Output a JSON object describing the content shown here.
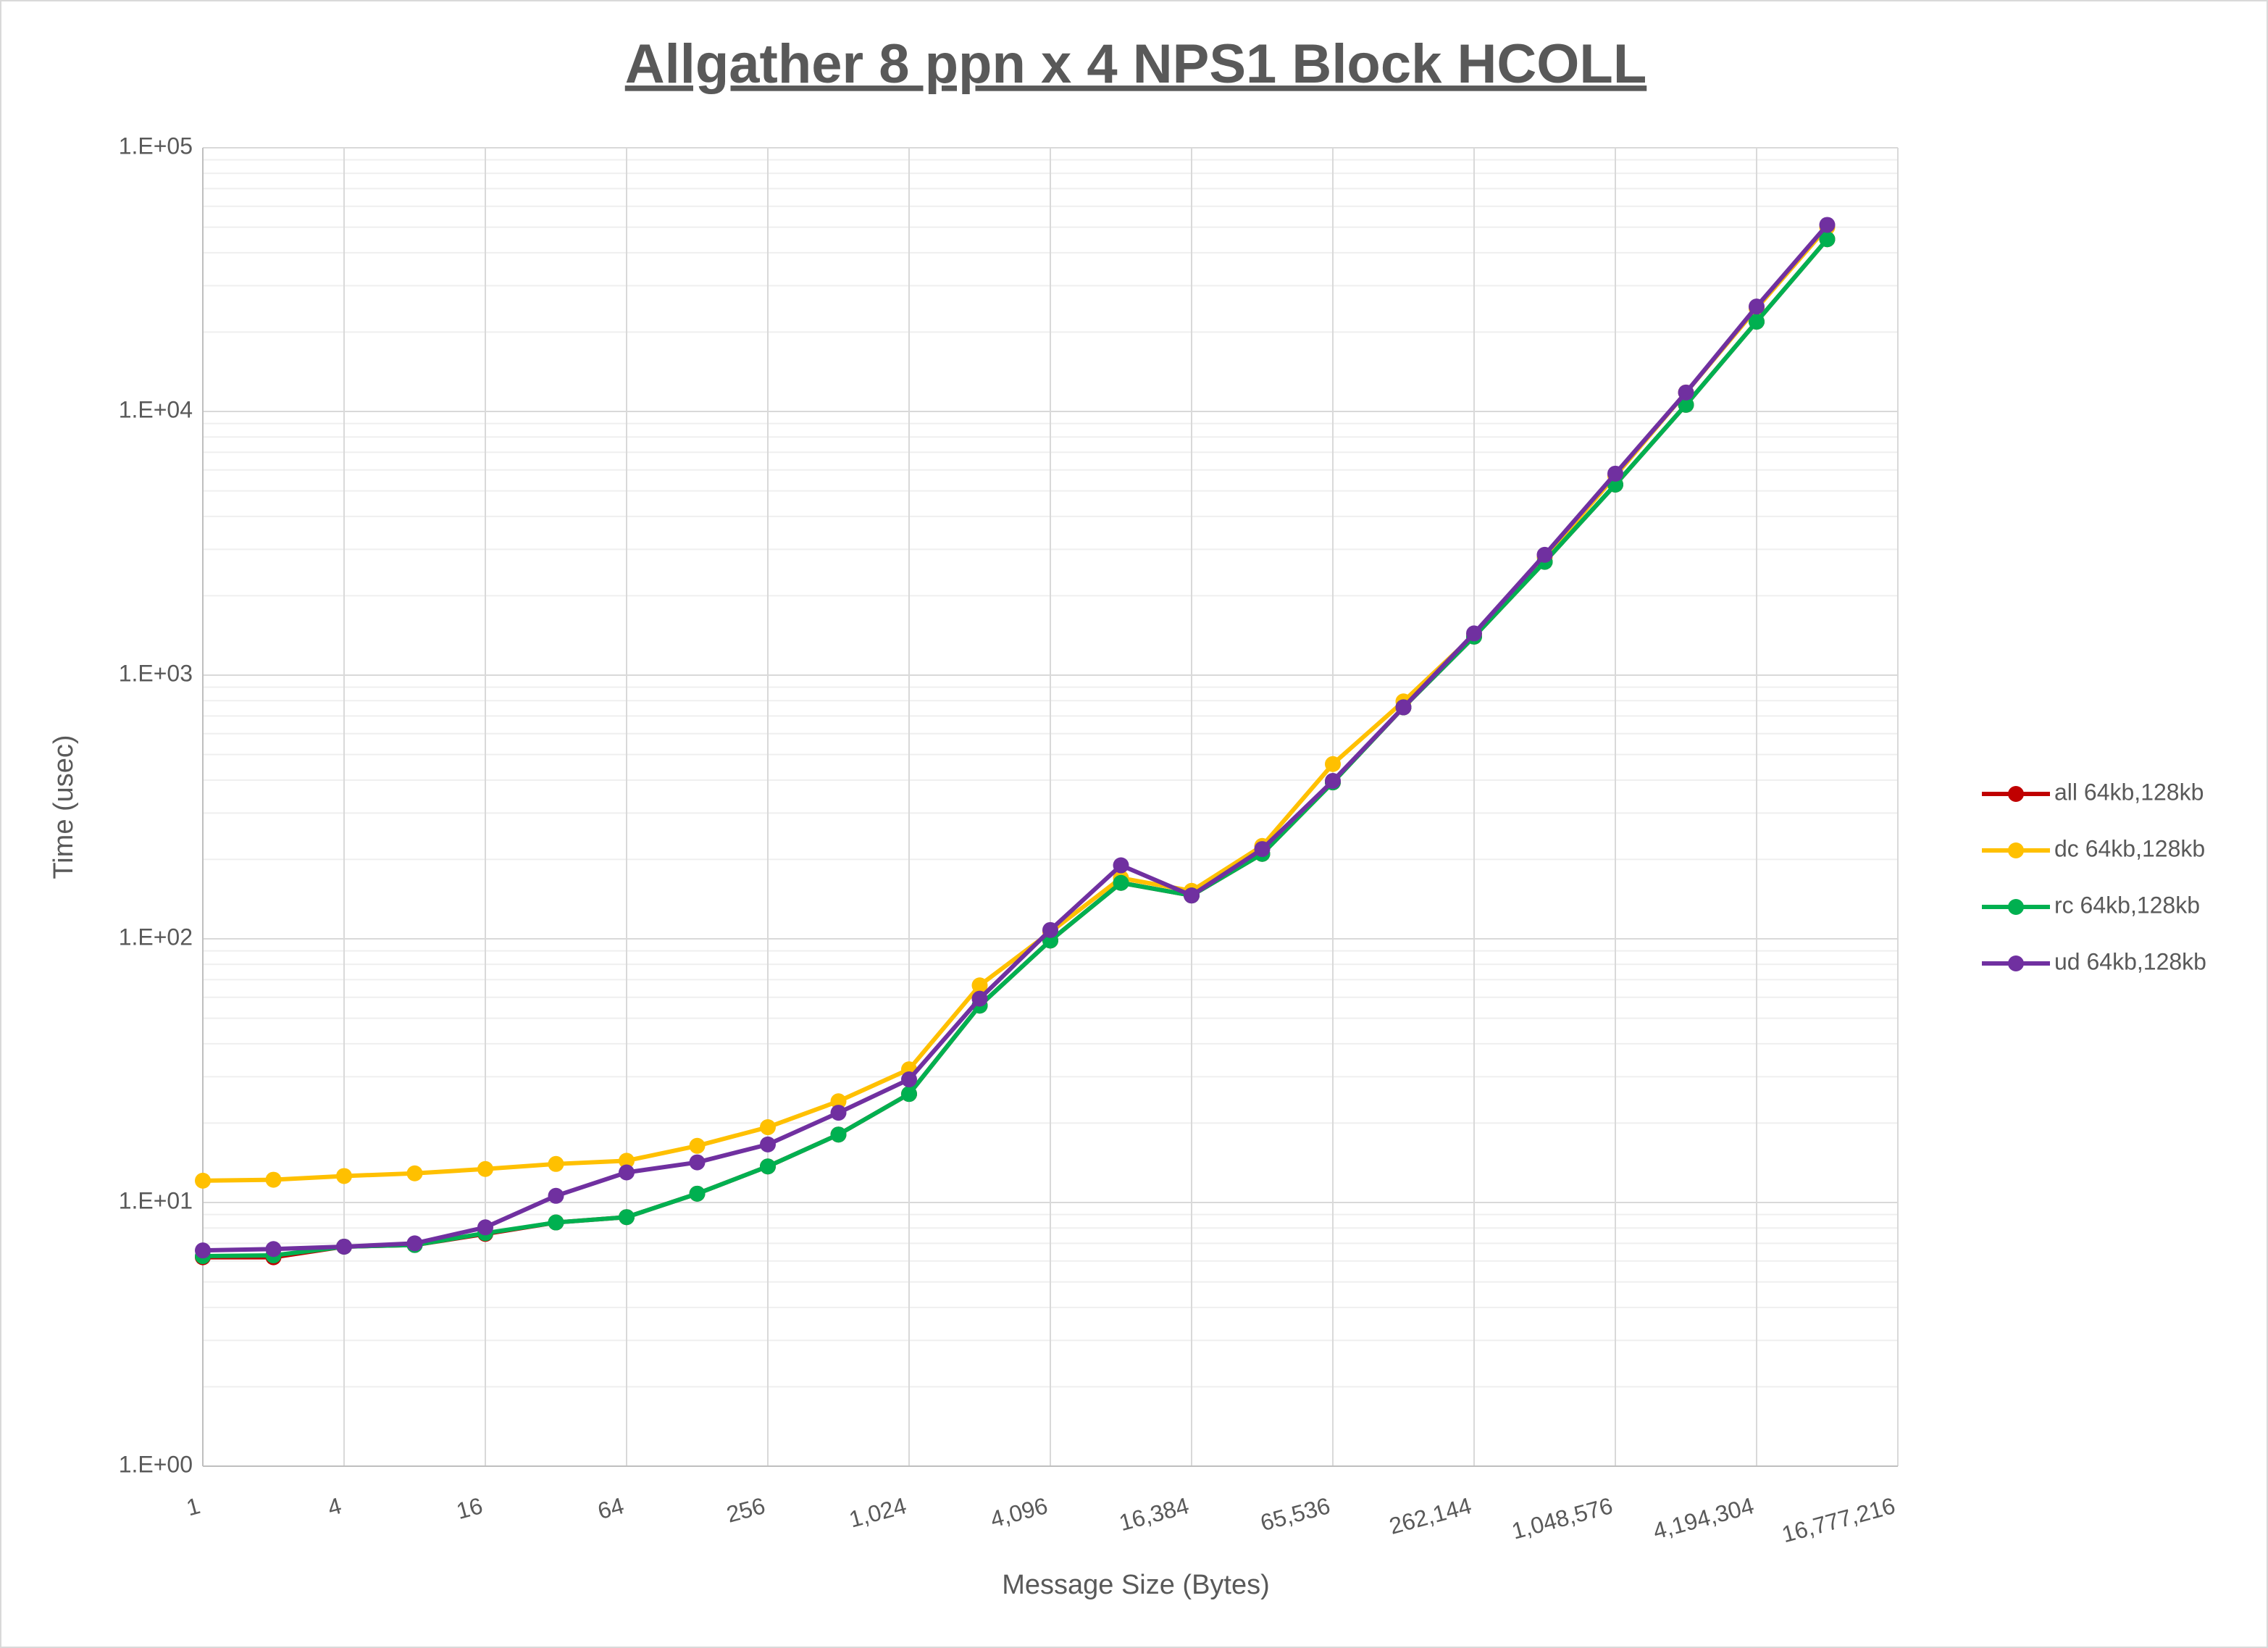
{
  "chart_data": {
    "type": "line",
    "title": "Allgather 8 ppn x 4 NPS1 Block HCOLL",
    "x_label": "Message Size (Bytes)",
    "y_label": "Time (usec)",
    "x": [
      1,
      2,
      4,
      8,
      16,
      32,
      64,
      128,
      256,
      512,
      1024,
      2048,
      4096,
      8192,
      16384,
      32768,
      65536,
      131072,
      262144,
      524288,
      1048576,
      2097152,
      4194304,
      8388608
    ],
    "xlim": [
      1,
      16777216
    ],
    "x_scale": "log",
    "x_log_base": 2,
    "xticks": [
      1,
      4,
      16,
      64,
      256,
      {
        "value": 1024,
        "label": "1,024"
      },
      {
        "value": 4096,
        "label": "4,096"
      },
      {
        "value": 16384,
        "label": "16,384"
      },
      {
        "value": 65536,
        "label": "65,536"
      },
      {
        "value": 262144,
        "label": "262,144"
      },
      {
        "value": 1048576,
        "label": "1,048,576"
      },
      {
        "value": 4194304,
        "label": "4,194,304"
      },
      {
        "value": 16777216,
        "label": "16,777,216"
      }
    ],
    "ylim": [
      1,
      100000
    ],
    "y_scale": "log",
    "yticks": [
      {
        "value": 1,
        "label": "1.E+00"
      },
      {
        "value": 10,
        "label": "1.E+01"
      },
      {
        "value": 100,
        "label": "1.E+02"
      },
      {
        "value": 1000,
        "label": "1.E+03"
      },
      {
        "value": 10000,
        "label": "1.E+04"
      },
      {
        "value": 100000,
        "label": "1.E+05"
      }
    ],
    "grid": true,
    "minor_grid": true,
    "legend": "right",
    "series": [
      {
        "name": "all 64kb,128kb",
        "color": "#c00000",
        "values": [
          6.2,
          6.2,
          6.8,
          6.9,
          7.6,
          8.4,
          8.8,
          10.8,
          13.7,
          18.1,
          25.8,
          55.8,
          98.5,
          163,
          146,
          210,
          392,
          755,
          1400,
          2690,
          5280,
          10600,
          21900,
          45000
        ]
      },
      {
        "name": "dc 64kb,128kb",
        "color": "#ffc000",
        "values": [
          12.1,
          12.2,
          12.6,
          12.9,
          13.4,
          14.0,
          14.4,
          16.4,
          19.3,
          24.2,
          32,
          66.6,
          106,
          170,
          152,
          225,
          460,
          795,
          1420,
          2800,
          5700,
          11800,
          24600,
          50000
        ]
      },
      {
        "name": "rc 64kb,128kb",
        "color": "#00b050",
        "values": [
          6.26,
          6.3,
          6.8,
          6.9,
          7.65,
          8.4,
          8.8,
          10.8,
          13.7,
          18.1,
          25.8,
          55.8,
          98.5,
          163,
          146,
          210,
          392,
          755,
          1400,
          2690,
          5280,
          10600,
          21900,
          45000
        ]
      },
      {
        "name": "ud 64kb,128kb",
        "color": "#7030a0",
        "values": [
          6.58,
          6.66,
          6.8,
          7.0,
          8.05,
          10.6,
          13.0,
          14.2,
          16.6,
          21.9,
          29.3,
          59.3,
          108,
          190,
          146,
          219,
          397,
          755,
          1440,
          2860,
          5810,
          11800,
          25000,
          51000
        ]
      }
    ]
  }
}
